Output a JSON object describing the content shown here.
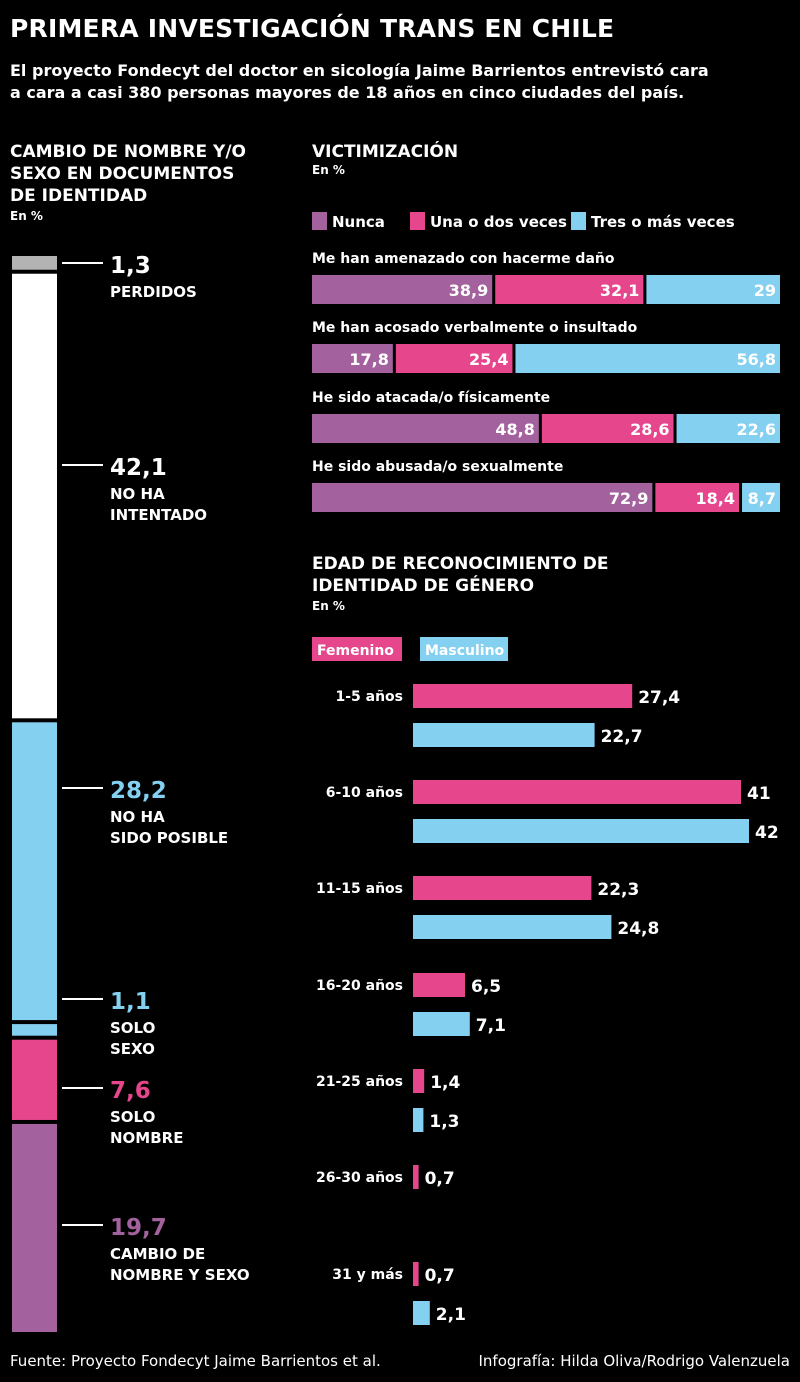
{
  "header": {
    "title": "PRIMERA INVESTIGACIÓN TRANS EN CHILE",
    "subtitle_line1": "El proyecto Fondecyt del doctor en sicología Jaime Barrientos entrevistó cara",
    "subtitle_line2": "a cara a casi 380 personas mayores de 18 años en cinco ciudades del país."
  },
  "footer": {
    "source": "Fuente: Proyecto Fondecyt Jaime Barrientos et al.",
    "credit": "Infografía: Hilda Oliva/Rodrigo Valenzuela"
  },
  "colors": {
    "gray": "#b3b3b3",
    "white": "#ffffff",
    "cyan": "#84d0f0",
    "magenta": "#e5468c",
    "purple": "#a3629d",
    "background": "#000000"
  },
  "chart_data": [
    {
      "type": "bar",
      "orientation": "stacked-vertical",
      "title_lines": [
        "CAMBIO DE NOMBRE Y/O",
        "SEXO EN DOCUMENTOS",
        "DE IDENTIDAD"
      ],
      "unit": "En %",
      "categories": [
        {
          "label_lines": [
            "PERDIDOS"
          ],
          "value": 1.3,
          "value_text": "1,3",
          "color": "gray"
        },
        {
          "label_lines": [
            "NO HA",
            "INTENTADO"
          ],
          "value": 42.1,
          "value_text": "42,1",
          "color": "white"
        },
        {
          "label_lines": [
            "NO HA",
            "SIDO POSIBLE"
          ],
          "value": 28.2,
          "value_text": "28,2",
          "color": "cyan"
        },
        {
          "label_lines": [
            "SOLO",
            "SEXO"
          ],
          "value": 1.1,
          "value_text": "1,1",
          "color": "cyan"
        },
        {
          "label_lines": [
            "SOLO",
            "NOMBRE"
          ],
          "value": 7.6,
          "value_text": "7,6",
          "color": "magenta"
        },
        {
          "label_lines": [
            "CAMBIO DE",
            "NOMBRE Y SEXO"
          ],
          "value": 19.7,
          "value_text": "19,7",
          "color": "purple"
        }
      ]
    },
    {
      "type": "bar",
      "orientation": "stacked-horizontal",
      "title": "VICTIMIZACIÓN",
      "unit": "En %",
      "series": [
        {
          "name": "Nunca",
          "color": "purple"
        },
        {
          "name": "Una o dos veces",
          "color": "magenta"
        },
        {
          "name": "Tres o más veces",
          "color": "cyan"
        }
      ],
      "categories": [
        {
          "label": "Me han amenazado con hacerme daño",
          "values": [
            38.9,
            32.1,
            29
          ],
          "value_texts": [
            "38,9",
            "32,1",
            "29"
          ]
        },
        {
          "label": "Me han acosado verbalmente o insultado",
          "values": [
            17.8,
            25.4,
            56.8
          ],
          "value_texts": [
            "17,8",
            "25,4",
            "56,8"
          ]
        },
        {
          "label": "He sido atacada/o físicamente",
          "values": [
            48.8,
            28.6,
            22.6
          ],
          "value_texts": [
            "48,8",
            "28,6",
            "22,6"
          ]
        },
        {
          "label": "He sido abusada/o sexualmente",
          "values": [
            72.9,
            18.4,
            8.7
          ],
          "value_texts": [
            "72,9",
            "18,4",
            "8,7"
          ]
        }
      ]
    },
    {
      "type": "bar",
      "orientation": "horizontal-grouped",
      "title_lines": [
        "EDAD DE RECONOCIMIENTO DE",
        "IDENTIDAD DE GÉNERO"
      ],
      "unit": "En %",
      "series": [
        {
          "name": "Femenino",
          "color": "magenta"
        },
        {
          "name": "Masculino",
          "color": "cyan"
        }
      ],
      "categories": [
        {
          "label": "1-5 años",
          "values": [
            27.4,
            22.7
          ],
          "value_texts": [
            "27,4",
            "22,7"
          ]
        },
        {
          "label": "6-10 años",
          "values": [
            41,
            42
          ],
          "value_texts": [
            "41",
            "42"
          ]
        },
        {
          "label": "11-15 años",
          "values": [
            22.3,
            24.8
          ],
          "value_texts": [
            "22,3",
            "24,8"
          ]
        },
        {
          "label": "16-20 años",
          "values": [
            6.5,
            7.1
          ],
          "value_texts": [
            "6,5",
            "7,1"
          ]
        },
        {
          "label": "21-25 años",
          "values": [
            1.4,
            1.3
          ],
          "value_texts": [
            "1,4",
            "1,3"
          ]
        },
        {
          "label": "26-30 años",
          "values": [
            0.7,
            null
          ],
          "value_texts": [
            "0,7",
            ""
          ]
        },
        {
          "label": "31 y más",
          "values": [
            0.7,
            2.1
          ],
          "value_texts": [
            "0,7",
            "2,1"
          ]
        }
      ]
    }
  ]
}
